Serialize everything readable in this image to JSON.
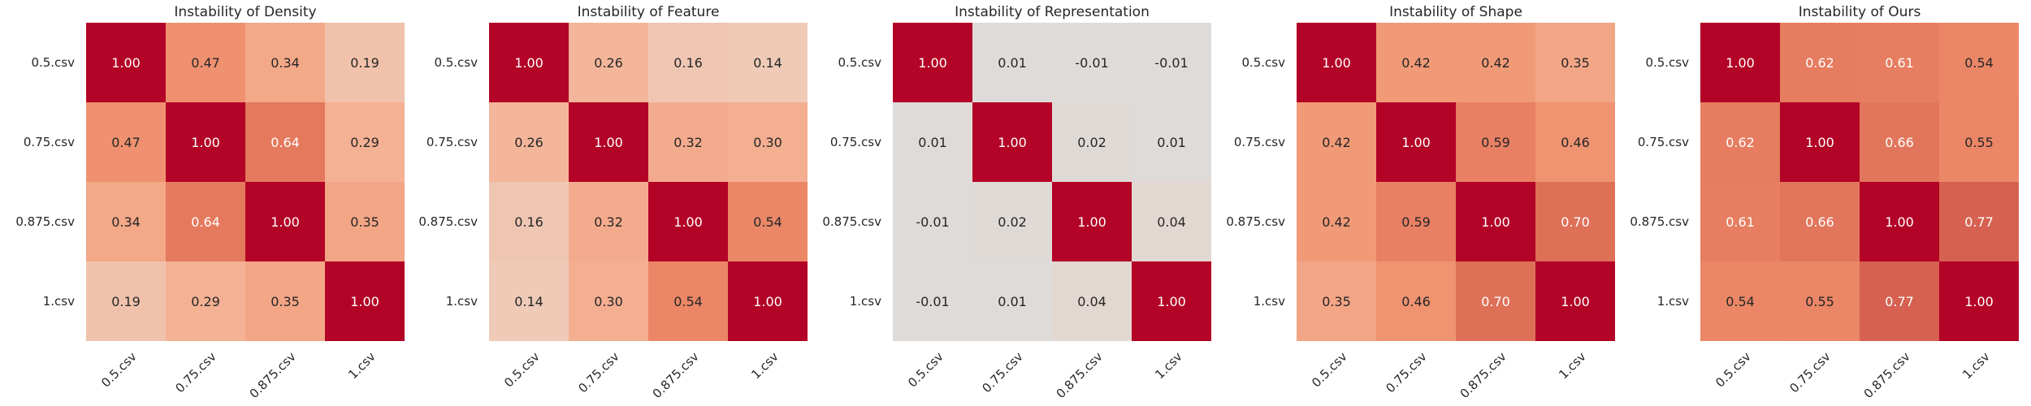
{
  "chart_data": [
    {
      "type": "heatmap",
      "title": "Instability of Density",
      "row_labels": [
        "0.5.csv",
        "0.75.csv",
        "0.875.csv",
        "1.csv"
      ],
      "col_labels": [
        "0.5.csv",
        "0.75.csv",
        "0.875.csv",
        "1.csv"
      ],
      "values": [
        [
          1.0,
          0.47,
          0.34,
          0.19
        ],
        [
          0.47,
          1.0,
          0.64,
          0.29
        ],
        [
          0.34,
          0.64,
          1.0,
          0.35
        ],
        [
          0.19,
          0.29,
          0.35,
          1.0
        ]
      ],
      "colormap": "coolwarm",
      "vmin": -1,
      "vmax": 1
    },
    {
      "type": "heatmap",
      "title": "Instability of Feature",
      "row_labels": [
        "0.5.csv",
        "0.75.csv",
        "0.875.csv",
        "1.csv"
      ],
      "col_labels": [
        "0.5.csv",
        "0.75.csv",
        "0.875.csv",
        "1.csv"
      ],
      "values": [
        [
          1.0,
          0.26,
          0.16,
          0.14
        ],
        [
          0.26,
          1.0,
          0.32,
          0.3
        ],
        [
          0.16,
          0.32,
          1.0,
          0.54
        ],
        [
          0.14,
          0.3,
          0.54,
          1.0
        ]
      ],
      "colormap": "coolwarm",
      "vmin": -1,
      "vmax": 1
    },
    {
      "type": "heatmap",
      "title": "Instability of Representation",
      "row_labels": [
        "0.5.csv",
        "0.75.csv",
        "0.875.csv",
        "1.csv"
      ],
      "col_labels": [
        "0.5.csv",
        "0.75.csv",
        "0.875.csv",
        "1.csv"
      ],
      "values": [
        [
          1.0,
          0.01,
          -0.01,
          -0.01
        ],
        [
          0.01,
          1.0,
          0.02,
          0.01
        ],
        [
          -0.01,
          0.02,
          1.0,
          0.04
        ],
        [
          -0.01,
          0.01,
          0.04,
          1.0
        ]
      ],
      "colormap": "coolwarm",
      "vmin": -1,
      "vmax": 1
    },
    {
      "type": "heatmap",
      "title": "Instability of Shape",
      "row_labels": [
        "0.5.csv",
        "0.75.csv",
        "0.875.csv",
        "1.csv"
      ],
      "col_labels": [
        "0.5.csv",
        "0.75.csv",
        "0.875.csv",
        "1.csv"
      ],
      "values": [
        [
          1.0,
          0.42,
          0.42,
          0.35
        ],
        [
          0.42,
          1.0,
          0.59,
          0.46
        ],
        [
          0.42,
          0.59,
          1.0,
          0.7
        ],
        [
          0.35,
          0.46,
          0.7,
          1.0
        ]
      ],
      "colormap": "coolwarm",
      "vmin": -1,
      "vmax": 1
    },
    {
      "type": "heatmap",
      "title": "Instability of Ours",
      "row_labels": [
        "0.5.csv",
        "0.75.csv",
        "0.875.csv",
        "1.csv"
      ],
      "col_labels": [
        "0.5.csv",
        "0.75.csv",
        "0.875.csv",
        "1.csv"
      ],
      "values": [
        [
          1.0,
          0.62,
          0.61,
          0.54
        ],
        [
          0.62,
          1.0,
          0.66,
          0.55
        ],
        [
          0.61,
          0.66,
          1.0,
          0.77
        ],
        [
          0.54,
          0.55,
          0.77,
          1.0
        ]
      ],
      "colormap": "coolwarm",
      "vmin": -1,
      "vmax": 1
    }
  ]
}
